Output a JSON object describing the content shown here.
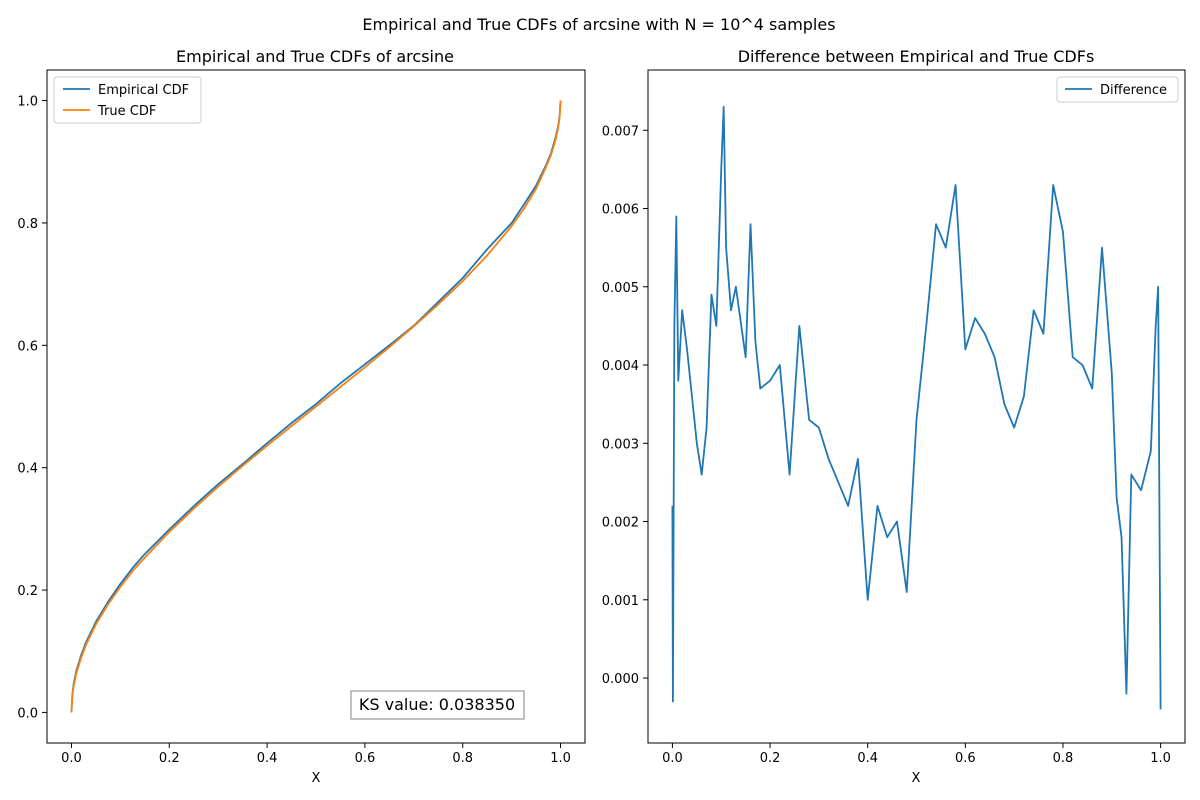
{
  "figure": {
    "suptitle": "Empirical and True CDFs of arcsine with N = 10^4 samples"
  },
  "chart_data": [
    {
      "type": "line",
      "title": "Empirical and True CDFs of arcsine",
      "xlabel": "X",
      "ylabel": "",
      "xlim": [
        -0.05,
        1.05
      ],
      "ylim": [
        -0.05,
        1.05
      ],
      "xticks": [
        "0.0",
        "0.2",
        "0.4",
        "0.6",
        "0.8",
        "1.0"
      ],
      "yticks": [
        "0.0",
        "0.2",
        "0.4",
        "0.6",
        "0.8",
        "1.0"
      ],
      "grid": false,
      "legend": "top-left",
      "annotation": "KS value: 0.038350",
      "x": [
        0,
        0.002,
        0.005,
        0.01,
        0.02,
        0.03,
        0.05,
        0.075,
        0.1,
        0.125,
        0.15,
        0.2,
        0.25,
        0.3,
        0.35,
        0.4,
        0.45,
        0.5,
        0.55,
        0.6,
        0.65,
        0.7,
        0.75,
        0.8,
        0.85,
        0.9,
        0.925,
        0.95,
        0.97,
        0.98,
        0.99,
        0.995,
        0.998,
        1.0
      ],
      "series": [
        {
          "name": "Empirical CDF",
          "color": "#1f77b4",
          "values": [
            0,
            0.031,
            0.049,
            0.068,
            0.094,
            0.115,
            0.148,
            0.181,
            0.21,
            0.236,
            0.259,
            0.299,
            0.337,
            0.373,
            0.406,
            0.44,
            0.473,
            0.504,
            0.538,
            0.569,
            0.6,
            0.632,
            0.671,
            0.71,
            0.757,
            0.8,
            0.83,
            0.861,
            0.894,
            0.913,
            0.94,
            0.958,
            0.974,
            1.0
          ]
        },
        {
          "name": "True CDF",
          "color": "#ff7f0e",
          "values": [
            0,
            0.029,
            0.045,
            0.064,
            0.09,
            0.111,
            0.144,
            0.177,
            0.205,
            0.231,
            0.253,
            0.295,
            0.333,
            0.369,
            0.403,
            0.436,
            0.468,
            0.5,
            0.532,
            0.564,
            0.597,
            0.631,
            0.667,
            0.705,
            0.747,
            0.795,
            0.823,
            0.856,
            0.891,
            0.91,
            0.936,
            0.955,
            0.972,
            1.0
          ]
        }
      ]
    },
    {
      "type": "line",
      "title": "Difference between Empirical and True CDFs",
      "xlabel": "X",
      "ylabel": "",
      "xlim": [
        -0.05,
        1.05
      ],
      "ylim": [
        -0.00083,
        0.00777
      ],
      "xticks": [
        "0.0",
        "0.2",
        "0.4",
        "0.6",
        "0.8",
        "1.0"
      ],
      "yticks": [
        "0.000",
        "0.001",
        "0.002",
        "0.003",
        "0.004",
        "0.005",
        "0.006",
        "0.007"
      ],
      "grid": false,
      "legend": "top-right",
      "series": [
        {
          "name": "Difference",
          "color": "#1f77b4",
          "x": [
            0,
            0.001,
            0.004,
            0.008,
            0.012,
            0.02,
            0.03,
            0.05,
            0.06,
            0.07,
            0.08,
            0.09,
            0.1,
            0.105,
            0.11,
            0.12,
            0.13,
            0.15,
            0.16,
            0.17,
            0.18,
            0.2,
            0.22,
            0.24,
            0.26,
            0.28,
            0.3,
            0.32,
            0.34,
            0.36,
            0.38,
            0.4,
            0.42,
            0.44,
            0.46,
            0.48,
            0.5,
            0.52,
            0.54,
            0.56,
            0.58,
            0.6,
            0.62,
            0.64,
            0.66,
            0.68,
            0.7,
            0.72,
            0.74,
            0.76,
            0.78,
            0.8,
            0.82,
            0.84,
            0.86,
            0.88,
            0.9,
            0.91,
            0.92,
            0.925,
            0.93,
            0.94,
            0.96,
            0.98,
            0.99,
            0.995,
            1.0
          ],
          "values": [
            0.0022,
            -0.0003,
            0.0045,
            0.0059,
            0.0038,
            0.0047,
            0.0042,
            0.003,
            0.0026,
            0.0032,
            0.0049,
            0.0045,
            0.0065,
            0.0073,
            0.0055,
            0.0047,
            0.005,
            0.0041,
            0.0058,
            0.0043,
            0.0037,
            0.0038,
            0.004,
            0.0026,
            0.0045,
            0.0033,
            0.0032,
            0.0028,
            0.0025,
            0.0022,
            0.0028,
            0.001,
            0.0022,
            0.0018,
            0.002,
            0.0011,
            0.0033,
            0.0045,
            0.0058,
            0.0055,
            0.0063,
            0.0042,
            0.0046,
            0.0044,
            0.0041,
            0.0035,
            0.0032,
            0.0036,
            0.0047,
            0.0044,
            0.0063,
            0.0057,
            0.0041,
            0.004,
            0.0037,
            0.0055,
            0.0039,
            0.0023,
            0.0018,
            0.0008,
            -0.0002,
            0.0026,
            0.0024,
            0.0029,
            0.0045,
            0.005,
            -0.0004
          ]
        }
      ]
    }
  ]
}
